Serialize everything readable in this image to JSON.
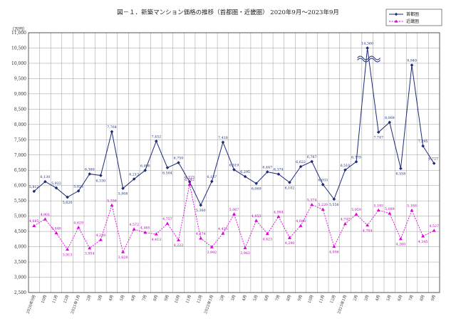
{
  "chart_data": {
    "type": "line",
    "title": "図－１．新築マンション価格の推移（首都圏・近畿圏） 2020年9月～2023年9月",
    "unit_label": "（万円）",
    "ylim": [
      2500,
      11000
    ],
    "yticks": [
      "2,500",
      "3,000",
      "3,500",
      "4,000",
      "4,500",
      "5,000",
      "5,500",
      "6,000",
      "6,500",
      "7,000",
      "7,500",
      "8,000",
      "8,500",
      "9,000",
      "9,500",
      "10,000",
      "10,500",
      "11,000"
    ],
    "categories": [
      "2020年9月",
      "10月",
      "11月",
      "12月",
      "2021年1月",
      "2月",
      "3月",
      "4月",
      "5月",
      "6月",
      "7月",
      "8月",
      "9月",
      "10月",
      "11月",
      "12月",
      "2022年1月",
      "2月",
      "3月",
      "4月",
      "5月",
      "6月",
      "7月",
      "8月",
      "9月",
      "10月",
      "11月",
      "12月",
      "2023年1月",
      "2月",
      "3月",
      "4月",
      "5月",
      "6月",
      "7月",
      "8月",
      "9月"
    ],
    "series": [
      {
        "name": "首都圏",
        "color": "#1c2a78",
        "marker": "diamond",
        "values": [
          5812,
          6130,
          5922,
          5620,
          5824,
          6380,
          6330,
          7764,
          5908,
          6213,
          6498,
          7452,
          6584,
          6750,
          6123,
          5360,
          6137,
          7418,
          6519,
          6295,
          6069,
          6447,
          6374,
          6102,
          6622,
          6787,
          6033,
          5556,
          6510,
          6779,
          14360,
          7747,
          8069,
          6558,
          9940,
          7295,
          6727
        ],
        "labels": [
          "5,812",
          "6,130",
          "5,922",
          "5,620",
          "5,824",
          "6,380",
          "6,330",
          "7,764",
          "5,908",
          "6,213",
          "6,498",
          "7,452",
          "6,584",
          "6,750",
          "6,123",
          "5,360",
          "6,137",
          "7,418",
          "6,519",
          "6,295",
          "6,069",
          "6,447",
          "6,374",
          "6,102",
          "6,622",
          "6,787",
          "6,033",
          "5,556",
          "6,510",
          "6,779",
          "14,360",
          "7,747",
          "8,069",
          "6,558",
          "9,940",
          "7,295",
          "6,727"
        ]
      },
      {
        "name": "近畿圏",
        "color": "#e000e0",
        "marker": "triangle",
        "values": [
          4685,
          4901,
          4448,
          3913,
          4629,
          3954,
          4228,
          5356,
          3828,
          4572,
          4465,
          4413,
          4757,
          4222,
          6042,
          4274,
          3992,
          4433,
          5067,
          3963,
          4853,
          4423,
          4984,
          4290,
          4688,
          5374,
          5220,
          4006,
          4747,
          5059,
          4704,
          5193,
          5089,
          4260,
          5188,
          4345,
          4527
        ],
        "labels": [
          "4,685",
          "4,901",
          "4,448",
          "3,913",
          "4,629",
          "3,954",
          "4,228",
          "5,356",
          "3,828",
          "4,572",
          "4,465",
          "4,413",
          "4,757",
          "4,222",
          "6,042",
          "4,274",
          "3,992",
          "4,433",
          "5,067",
          "3,963",
          "4,853",
          "4,423",
          "4,984",
          "4,290",
          "4,688",
          "5,374",
          "5,220",
          "4,006",
          "4,747",
          "5,059",
          "4,704",
          "5,193",
          "5,089",
          "4,260",
          "5,188",
          "4,345",
          "4,527"
        ]
      }
    ],
    "axis_break_value": 10500,
    "grid": true,
    "legend_position": "top-right"
  }
}
